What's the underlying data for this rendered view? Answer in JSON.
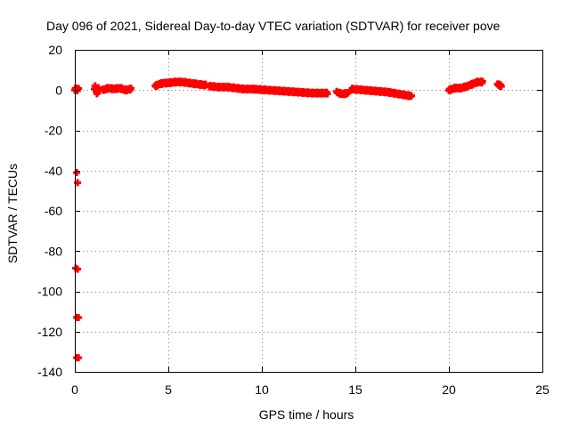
{
  "chart_data": {
    "type": "scatter",
    "title": "Day 096 of 2021, Sidereal Day-to-day VTEC variation (SDTVAR) for receiver pove",
    "xlabel": "GPS time / hours",
    "ylabel": "SDTVAR / TECUs",
    "xlim": [
      0,
      25
    ],
    "ylim": [
      -140,
      20
    ],
    "x_ticks": [
      0,
      5,
      10,
      15,
      20,
      25
    ],
    "y_ticks": [
      20,
      0,
      -20,
      -40,
      -60,
      -80,
      -100,
      -120,
      -140
    ],
    "x_tick_labels": [
      "0",
      "5",
      "10",
      "15",
      "20",
      "25"
    ],
    "y_tick_labels": [
      "20",
      "0",
      "-20",
      "-40",
      "-60",
      "-80",
      "-100",
      "-120",
      "-140"
    ],
    "grid": true,
    "marker_color": "#ff0000",
    "series": [
      {
        "name": "SDTVAR",
        "segments": [
          {
            "x_start": 0.0,
            "x_end": 0.2,
            "y_points": [
              0,
              1,
              0.5,
              0,
              1
            ]
          },
          {
            "x_start": 1.05,
            "x_end": 1.25,
            "y_points": [
              1,
              2,
              -1,
              -2,
              1
            ]
          },
          {
            "x_start": 1.5,
            "x_end": 3.0,
            "y_points": [
              0,
              1,
              0.5,
              1,
              0,
              0.5
            ]
          },
          {
            "x_start": 4.3,
            "x_end": 5.0,
            "y_points": [
              2,
              3,
              3.5,
              3.5
            ]
          },
          {
            "x_start": 5.0,
            "x_end": 6.5,
            "y_points": [
              3.5,
              4,
              4,
              3.5,
              3
            ]
          },
          {
            "x_start": 6.5,
            "x_end": 7.0,
            "y_points": [
              3,
              2.5
            ]
          },
          {
            "x_start": 7.2,
            "x_end": 9.5,
            "y_points": [
              2,
              1.5,
              1.5,
              1,
              0.5,
              0.5
            ]
          },
          {
            "x_start": 9.5,
            "x_end": 13.5,
            "y_points": [
              0.5,
              0,
              -0.5,
              -1,
              -1.5,
              -1.5
            ]
          },
          {
            "x_start": 14.0,
            "x_end": 14.6,
            "y_points": [
              -1,
              -2,
              -1.5
            ]
          },
          {
            "x_start": 14.8,
            "x_end": 18.0,
            "y_points": [
              0.5,
              0,
              -0.5,
              -1,
              -2,
              -3
            ]
          },
          {
            "x_start": 20.0,
            "x_end": 21.0,
            "y_points": [
              0,
              1,
              1,
              2
            ]
          },
          {
            "x_start": 21.0,
            "x_end": 21.8,
            "y_points": [
              2,
              3,
              4,
              4
            ]
          },
          {
            "x_start": 22.6,
            "x_end": 22.8,
            "y_points": [
              3,
              2
            ]
          }
        ],
        "points": [
          [
            0.1,
            -41
          ],
          [
            0.15,
            -46
          ],
          [
            0.05,
            -88.5
          ],
          [
            0.15,
            -89
          ],
          [
            0.1,
            -113
          ],
          [
            0.2,
            -113
          ],
          [
            0.1,
            -133
          ],
          [
            0.2,
            -133
          ]
        ]
      }
    ]
  }
}
